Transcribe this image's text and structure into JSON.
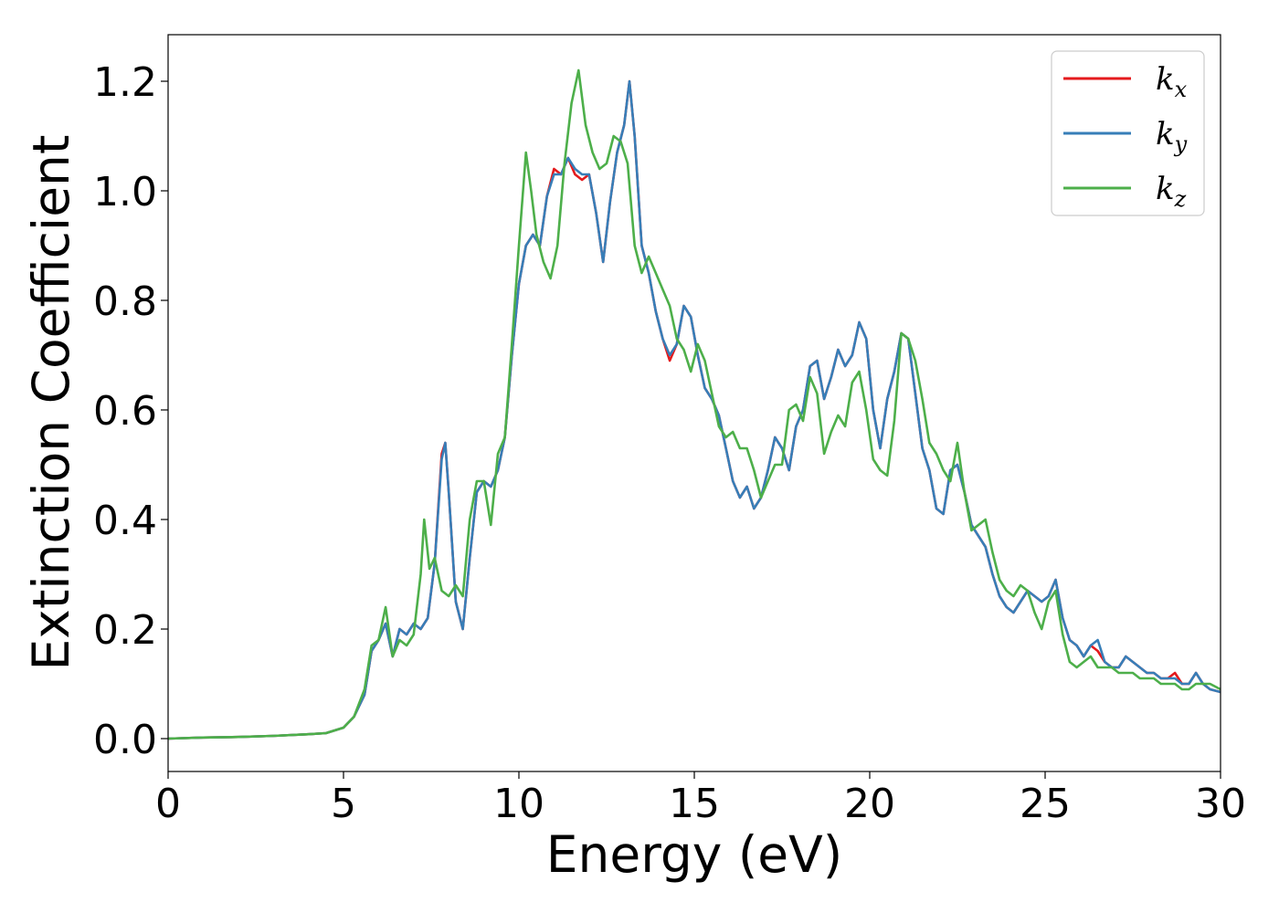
{
  "chart_data": {
    "type": "line",
    "xlabel": "Energy (eV)",
    "ylabel": "Extinction Coefficient",
    "xlim": [
      0,
      30
    ],
    "ylim": [
      -0.06,
      1.285
    ],
    "xticks": [
      "0",
      "5",
      "10",
      "15",
      "20",
      "25",
      "30"
    ],
    "yticks": [
      "0.0",
      "0.2",
      "0.4",
      "0.6",
      "0.8",
      "1.0",
      "1.2"
    ],
    "grid": false,
    "legend_position": "top-right",
    "series": [
      {
        "name": "k",
        "subscript": "x",
        "color": "#e41a1c",
        "x": [
          0,
          1,
          2,
          3,
          4,
          4.5,
          5,
          5.3,
          5.6,
          5.8,
          6.0,
          6.2,
          6.4,
          6.6,
          6.8,
          7.0,
          7.2,
          7.4,
          7.6,
          7.8,
          7.9,
          8.0,
          8.2,
          8.4,
          8.6,
          8.8,
          9.0,
          9.2,
          9.4,
          9.6,
          9.8,
          10.0,
          10.2,
          10.4,
          10.6,
          10.8,
          11.0,
          11.2,
          11.4,
          11.6,
          11.8,
          12.0,
          12.2,
          12.4,
          12.6,
          12.8,
          13.0,
          13.15,
          13.3,
          13.5,
          13.7,
          13.9,
          14.1,
          14.3,
          14.5,
          14.7,
          14.9,
          15.1,
          15.3,
          15.5,
          15.7,
          15.9,
          16.1,
          16.3,
          16.5,
          16.7,
          16.9,
          17.1,
          17.3,
          17.5,
          17.7,
          17.9,
          18.1,
          18.3,
          18.5,
          18.7,
          18.9,
          19.1,
          19.3,
          19.5,
          19.7,
          19.9,
          20.1,
          20.3,
          20.5,
          20.7,
          20.9,
          21.1,
          21.3,
          21.5,
          21.7,
          21.9,
          22.1,
          22.3,
          22.5,
          22.7,
          22.9,
          23.1,
          23.3,
          23.5,
          23.7,
          23.9,
          24.1,
          24.3,
          24.5,
          24.7,
          24.9,
          25.1,
          25.3,
          25.5,
          25.7,
          25.9,
          26.1,
          26.3,
          26.5,
          26.7,
          26.9,
          27.1,
          27.3,
          27.5,
          27.7,
          27.9,
          28.1,
          28.3,
          28.5,
          28.7,
          28.9,
          29.1,
          29.3,
          29.5,
          29.7,
          30
        ],
        "y": [
          0,
          0.002,
          0.003,
          0.005,
          0.008,
          0.01,
          0.02,
          0.04,
          0.08,
          0.16,
          0.18,
          0.21,
          0.15,
          0.2,
          0.19,
          0.21,
          0.2,
          0.22,
          0.32,
          0.52,
          0.54,
          0.45,
          0.25,
          0.2,
          0.33,
          0.45,
          0.47,
          0.46,
          0.49,
          0.55,
          0.7,
          0.83,
          0.9,
          0.92,
          0.9,
          0.99,
          1.04,
          1.03,
          1.06,
          1.03,
          1.02,
          1.03,
          0.96,
          0.87,
          0.98,
          1.07,
          1.12,
          1.2,
          1.1,
          0.9,
          0.85,
          0.78,
          0.73,
          0.69,
          0.72,
          0.79,
          0.77,
          0.7,
          0.64,
          0.62,
          0.59,
          0.53,
          0.47,
          0.44,
          0.46,
          0.42,
          0.44,
          0.49,
          0.55,
          0.53,
          0.49,
          0.57,
          0.6,
          0.68,
          0.69,
          0.62,
          0.66,
          0.71,
          0.68,
          0.7,
          0.76,
          0.73,
          0.6,
          0.53,
          0.62,
          0.67,
          0.74,
          0.73,
          0.63,
          0.53,
          0.49,
          0.42,
          0.41,
          0.49,
          0.5,
          0.45,
          0.39,
          0.37,
          0.35,
          0.3,
          0.26,
          0.24,
          0.23,
          0.25,
          0.27,
          0.26,
          0.25,
          0.26,
          0.29,
          0.22,
          0.18,
          0.17,
          0.15,
          0.17,
          0.16,
          0.14,
          0.13,
          0.13,
          0.15,
          0.14,
          0.13,
          0.12,
          0.12,
          0.11,
          0.11,
          0.12,
          0.1,
          0.1,
          0.12,
          0.1,
          0.09,
          0.085
        ]
      },
      {
        "name": "k",
        "subscript": "y",
        "color": "#377eb8",
        "x": [
          0,
          1,
          2,
          3,
          4,
          4.5,
          5,
          5.3,
          5.6,
          5.8,
          6.0,
          6.2,
          6.4,
          6.6,
          6.8,
          7.0,
          7.2,
          7.4,
          7.6,
          7.8,
          7.9,
          8.0,
          8.2,
          8.4,
          8.6,
          8.8,
          9.0,
          9.2,
          9.4,
          9.6,
          9.8,
          10.0,
          10.2,
          10.4,
          10.6,
          10.8,
          11.0,
          11.2,
          11.4,
          11.6,
          11.8,
          12.0,
          12.2,
          12.4,
          12.6,
          12.8,
          13.0,
          13.15,
          13.3,
          13.5,
          13.7,
          13.9,
          14.1,
          14.3,
          14.5,
          14.7,
          14.9,
          15.1,
          15.3,
          15.5,
          15.7,
          15.9,
          16.1,
          16.3,
          16.5,
          16.7,
          16.9,
          17.1,
          17.3,
          17.5,
          17.7,
          17.9,
          18.1,
          18.3,
          18.5,
          18.7,
          18.9,
          19.1,
          19.3,
          19.5,
          19.7,
          19.9,
          20.1,
          20.3,
          20.5,
          20.7,
          20.9,
          21.1,
          21.3,
          21.5,
          21.7,
          21.9,
          22.1,
          22.3,
          22.5,
          22.7,
          22.9,
          23.1,
          23.3,
          23.5,
          23.7,
          23.9,
          24.1,
          24.3,
          24.5,
          24.7,
          24.9,
          25.1,
          25.3,
          25.5,
          25.7,
          25.9,
          26.1,
          26.3,
          26.5,
          26.7,
          26.9,
          27.1,
          27.3,
          27.5,
          27.7,
          27.9,
          28.1,
          28.3,
          28.5,
          28.7,
          28.9,
          29.1,
          29.3,
          29.5,
          29.7,
          30
        ],
        "y": [
          0,
          0.002,
          0.003,
          0.005,
          0.008,
          0.01,
          0.02,
          0.04,
          0.08,
          0.16,
          0.18,
          0.21,
          0.15,
          0.2,
          0.19,
          0.21,
          0.2,
          0.22,
          0.32,
          0.51,
          0.54,
          0.45,
          0.25,
          0.2,
          0.33,
          0.45,
          0.47,
          0.46,
          0.49,
          0.55,
          0.7,
          0.83,
          0.9,
          0.92,
          0.9,
          0.99,
          1.03,
          1.03,
          1.06,
          1.04,
          1.03,
          1.03,
          0.96,
          0.87,
          0.98,
          1.07,
          1.12,
          1.2,
          1.1,
          0.9,
          0.85,
          0.78,
          0.73,
          0.7,
          0.72,
          0.79,
          0.77,
          0.7,
          0.64,
          0.62,
          0.59,
          0.53,
          0.47,
          0.44,
          0.46,
          0.42,
          0.44,
          0.49,
          0.55,
          0.53,
          0.49,
          0.57,
          0.6,
          0.68,
          0.69,
          0.62,
          0.66,
          0.71,
          0.68,
          0.7,
          0.76,
          0.73,
          0.6,
          0.53,
          0.62,
          0.67,
          0.74,
          0.73,
          0.63,
          0.53,
          0.49,
          0.42,
          0.41,
          0.49,
          0.5,
          0.45,
          0.39,
          0.37,
          0.35,
          0.3,
          0.26,
          0.24,
          0.23,
          0.25,
          0.27,
          0.26,
          0.25,
          0.26,
          0.29,
          0.22,
          0.18,
          0.17,
          0.15,
          0.17,
          0.18,
          0.14,
          0.13,
          0.13,
          0.15,
          0.14,
          0.13,
          0.12,
          0.12,
          0.11,
          0.11,
          0.11,
          0.1,
          0.1,
          0.12,
          0.1,
          0.09,
          0.085
        ]
      },
      {
        "name": "k",
        "subscript": "z",
        "color": "#4daf4a",
        "x": [
          0,
          1,
          2,
          3,
          4,
          4.5,
          5,
          5.3,
          5.6,
          5.8,
          6.0,
          6.2,
          6.4,
          6.6,
          6.8,
          7.0,
          7.2,
          7.3,
          7.45,
          7.6,
          7.8,
          8.0,
          8.2,
          8.4,
          8.6,
          8.8,
          9.0,
          9.2,
          9.4,
          9.6,
          9.8,
          10.0,
          10.2,
          10.35,
          10.5,
          10.7,
          10.9,
          11.1,
          11.3,
          11.5,
          11.7,
          11.9,
          12.1,
          12.3,
          12.5,
          12.7,
          12.9,
          13.1,
          13.3,
          13.5,
          13.7,
          13.9,
          14.1,
          14.3,
          14.5,
          14.7,
          14.9,
          15.1,
          15.3,
          15.5,
          15.7,
          15.9,
          16.1,
          16.3,
          16.5,
          16.7,
          16.9,
          17.1,
          17.3,
          17.5,
          17.7,
          17.9,
          18.1,
          18.3,
          18.5,
          18.7,
          18.9,
          19.1,
          19.3,
          19.5,
          19.7,
          19.9,
          20.1,
          20.3,
          20.5,
          20.7,
          20.9,
          21.1,
          21.3,
          21.5,
          21.7,
          21.9,
          22.1,
          22.3,
          22.5,
          22.7,
          22.9,
          23.1,
          23.3,
          23.5,
          23.7,
          23.9,
          24.1,
          24.3,
          24.5,
          24.7,
          24.9,
          25.1,
          25.3,
          25.5,
          25.7,
          25.9,
          26.1,
          26.3,
          26.5,
          26.7,
          26.9,
          27.1,
          27.3,
          27.5,
          27.7,
          27.9,
          28.1,
          28.3,
          28.5,
          28.7,
          28.9,
          29.1,
          29.3,
          29.5,
          29.7,
          30
        ],
        "y": [
          0,
          0.002,
          0.003,
          0.005,
          0.008,
          0.01,
          0.02,
          0.04,
          0.09,
          0.17,
          0.18,
          0.24,
          0.15,
          0.18,
          0.17,
          0.19,
          0.3,
          0.4,
          0.31,
          0.33,
          0.27,
          0.26,
          0.28,
          0.26,
          0.4,
          0.47,
          0.47,
          0.39,
          0.52,
          0.55,
          0.72,
          0.9,
          1.07,
          1.0,
          0.92,
          0.87,
          0.84,
          0.9,
          1.05,
          1.16,
          1.22,
          1.12,
          1.07,
          1.04,
          1.05,
          1.1,
          1.09,
          1.05,
          0.9,
          0.85,
          0.88,
          0.85,
          0.82,
          0.79,
          0.73,
          0.71,
          0.67,
          0.72,
          0.69,
          0.63,
          0.57,
          0.55,
          0.56,
          0.53,
          0.53,
          0.49,
          0.44,
          0.47,
          0.5,
          0.5,
          0.6,
          0.61,
          0.58,
          0.66,
          0.63,
          0.52,
          0.56,
          0.59,
          0.57,
          0.65,
          0.67,
          0.6,
          0.51,
          0.49,
          0.48,
          0.58,
          0.74,
          0.73,
          0.69,
          0.62,
          0.54,
          0.52,
          0.49,
          0.47,
          0.54,
          0.45,
          0.38,
          0.39,
          0.4,
          0.34,
          0.29,
          0.27,
          0.26,
          0.28,
          0.27,
          0.23,
          0.2,
          0.25,
          0.27,
          0.19,
          0.14,
          0.13,
          0.14,
          0.15,
          0.13,
          0.13,
          0.13,
          0.12,
          0.12,
          0.12,
          0.11,
          0.11,
          0.11,
          0.1,
          0.1,
          0.1,
          0.09,
          0.09,
          0.1,
          0.1,
          0.1,
          0.09
        ]
      }
    ]
  }
}
